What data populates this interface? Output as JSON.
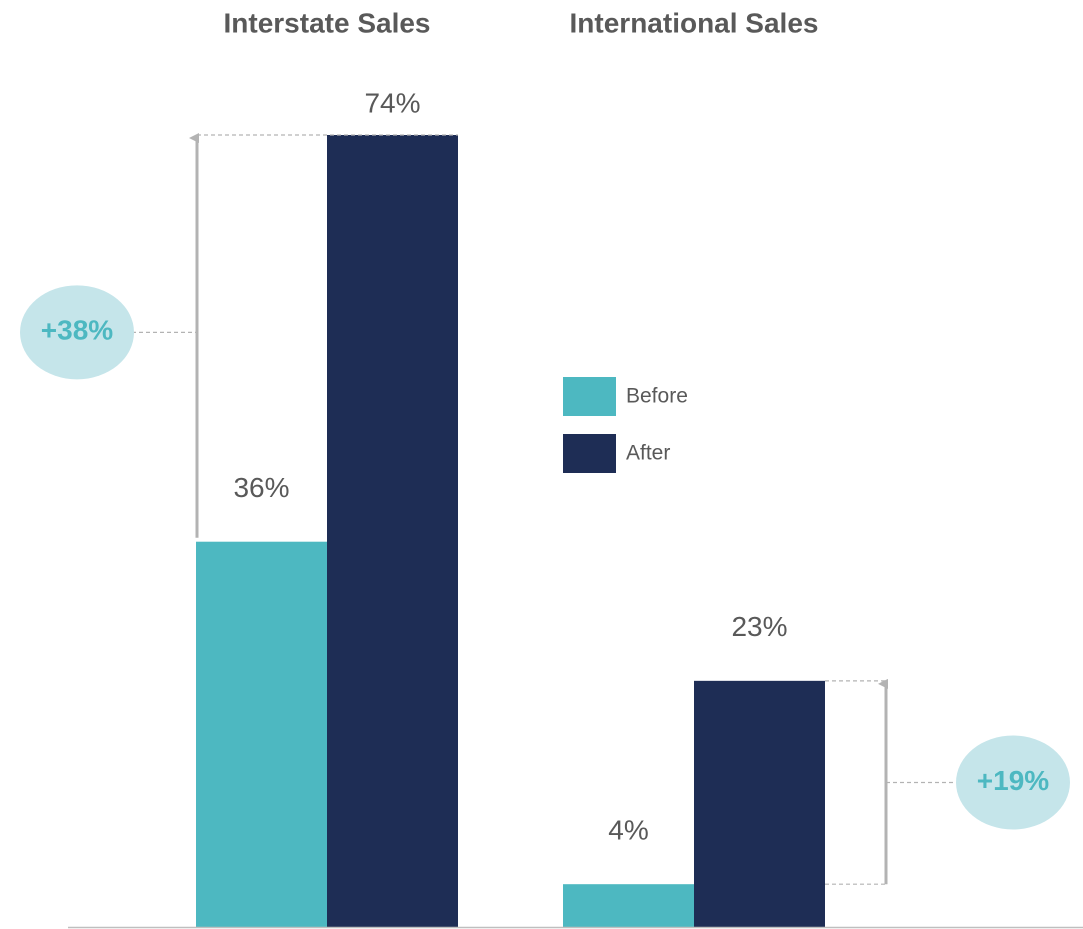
{
  "chart_data": {
    "type": "bar",
    "categories": [
      "Interstate Sales",
      "International Sales"
    ],
    "series": [
      {
        "name": "Before",
        "color": "#4db8c1",
        "values": [
          36,
          4
        ],
        "value_labels": [
          "36%",
          "4%"
        ]
      },
      {
        "name": "After",
        "color": "#1e2d55",
        "values": [
          74,
          23
        ],
        "value_labels": [
          "74%",
          "23%"
        ]
      }
    ],
    "annotations": [
      "+38%",
      "+19%"
    ],
    "legend": "center"
  }
}
